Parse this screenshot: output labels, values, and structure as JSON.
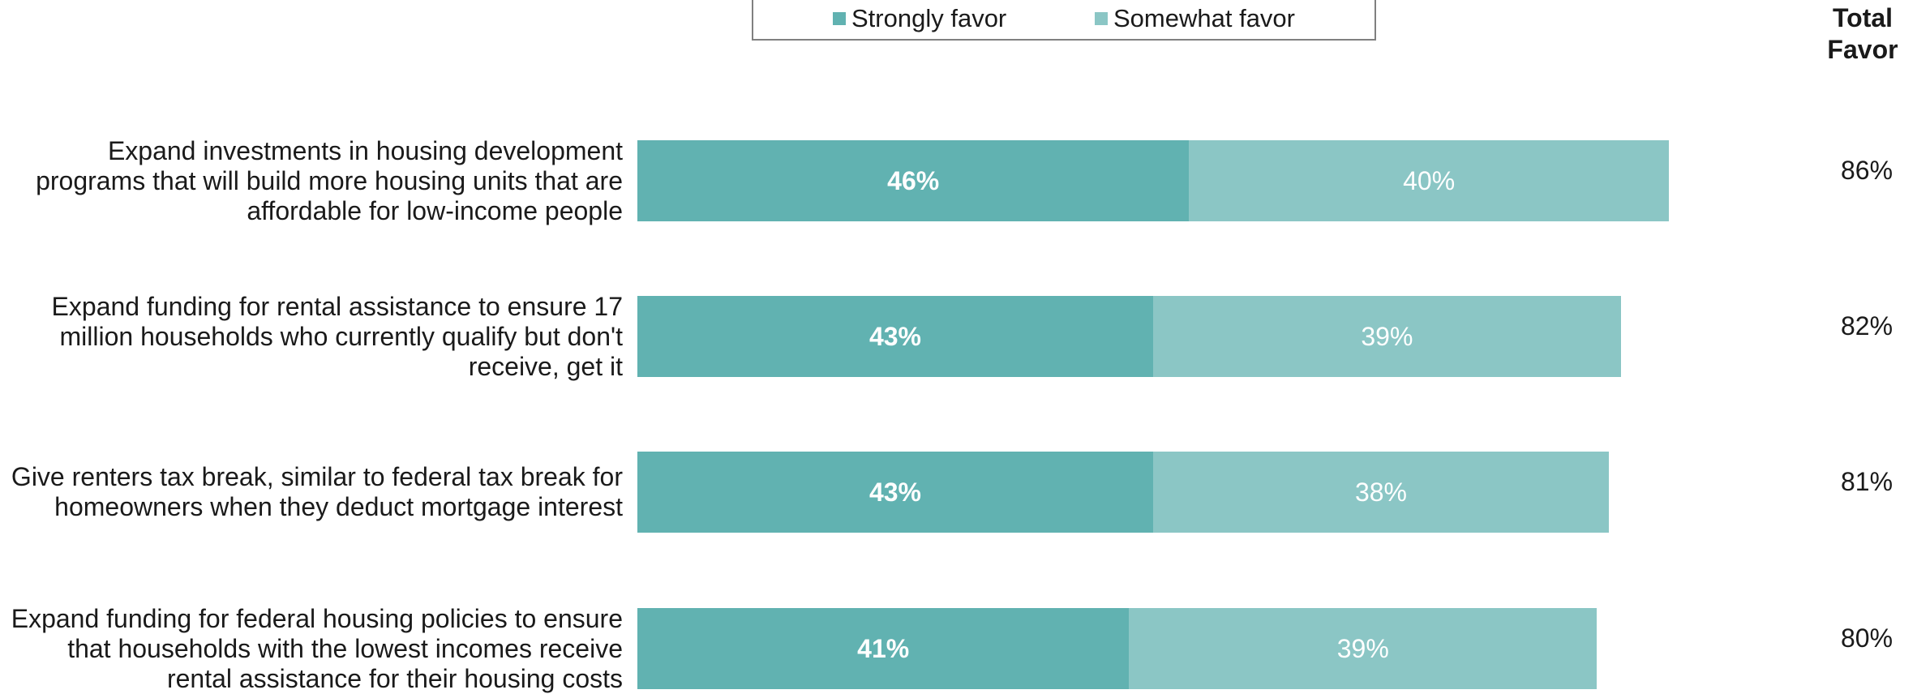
{
  "colors": {
    "strongly_favor": "#61b2b1",
    "somewhat_favor": "#8bc6c5"
  },
  "legend": {
    "strongly_favor": "Strongly favor",
    "somewhat_favor": "Somewhat favor"
  },
  "total_header": [
    "Total",
    "Favor"
  ],
  "chart_data": {
    "type": "bar",
    "orientation": "horizontal",
    "stacked": true,
    "legend_position": "top",
    "grid": false,
    "xlim": [
      0,
      100
    ],
    "categories": [
      [
        "Expand investments in housing development",
        "programs that will build more housing units that are",
        "affordable for low-income people"
      ],
      [
        "Expand funding for rental assistance to ensure 17",
        "million households who currently qualify but don't",
        "receive, get it"
      ],
      [
        "Give renters tax break, similar to federal tax break for",
        "homeowners when they deduct mortgage interest"
      ],
      [
        "Expand funding for federal housing policies to ensure",
        "that households with the lowest incomes receive",
        "rental assistance for their housing costs"
      ]
    ],
    "series": [
      {
        "name": "Strongly favor",
        "values": [
          46,
          43,
          43,
          41
        ],
        "labels": [
          "46%",
          "43%",
          "43%",
          "41%"
        ]
      },
      {
        "name": "Somewhat favor",
        "values": [
          40,
          39,
          38,
          39
        ],
        "labels": [
          "40%",
          "39%",
          "38%",
          "39%"
        ]
      }
    ],
    "totals": {
      "name": "Total Favor",
      "values": [
        86,
        82,
        81,
        80
      ],
      "labels": [
        "86%",
        "82%",
        "81%",
        "80%"
      ]
    }
  }
}
